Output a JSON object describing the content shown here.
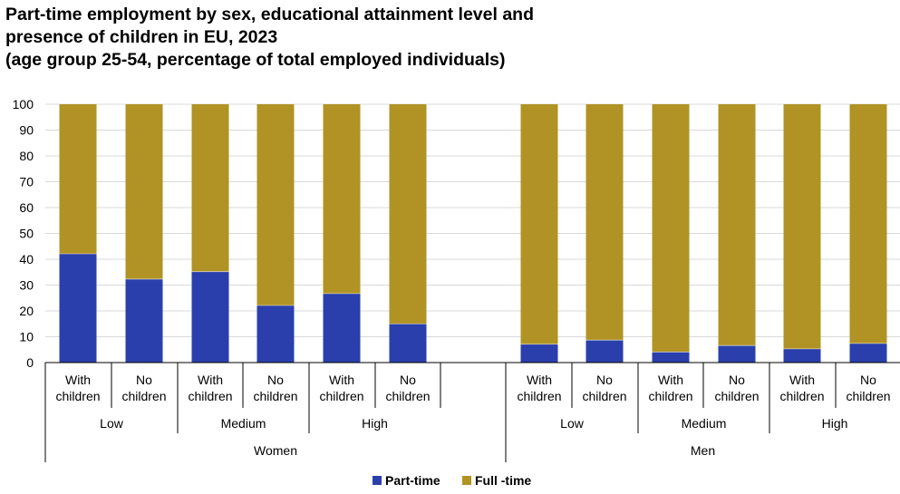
{
  "chart_data": {
    "type": "bar",
    "stacked": true,
    "title_lines": [
      "Part-time employment by sex, educational attainment level and",
      "presence of children in EU, 2023",
      "(age group 25-54, percentage of total employed individuals)"
    ],
    "ylim": [
      0,
      100
    ],
    "y_ticks": [
      "0",
      "10",
      "20",
      "30",
      "40",
      "50",
      "60",
      "70",
      "80",
      "90",
      "100"
    ],
    "grid": true,
    "legend_position": "bottom",
    "groups": [
      {
        "sex": "Women",
        "levels": [
          "Low",
          "Medium",
          "High"
        ]
      },
      {
        "sex": "Men",
        "levels": [
          "Low",
          "Medium",
          "High"
        ]
      }
    ],
    "categories": [
      {
        "sex": "Women",
        "level": "Low",
        "line1": "With",
        "line2": "children"
      },
      {
        "sex": "Women",
        "level": "Low",
        "line1": "No",
        "line2": "children"
      },
      {
        "sex": "Women",
        "level": "Medium",
        "line1": "With",
        "line2": "children"
      },
      {
        "sex": "Women",
        "level": "Medium",
        "line1": "No",
        "line2": "children"
      },
      {
        "sex": "Women",
        "level": "High",
        "line1": "With",
        "line2": "children"
      },
      {
        "sex": "Women",
        "level": "High",
        "line1": "No",
        "line2": "children"
      },
      {
        "sex": "Men",
        "level": "Low",
        "line1": "With",
        "line2": "children"
      },
      {
        "sex": "Men",
        "level": "Low",
        "line1": "No",
        "line2": "children"
      },
      {
        "sex": "Men",
        "level": "Medium",
        "line1": "With",
        "line2": "children"
      },
      {
        "sex": "Men",
        "level": "Medium",
        "line1": "No",
        "line2": "children"
      },
      {
        "sex": "Men",
        "level": "High",
        "line1": "With",
        "line2": "children"
      },
      {
        "sex": "Men",
        "level": "High",
        "line1": "No",
        "line2": "children"
      }
    ],
    "series": [
      {
        "name": "Part-time",
        "color": "#2a3fab",
        "values": [
          42.1,
          32.3,
          35.2,
          22.1,
          26.7,
          15.0,
          7.1,
          8.7,
          4.1,
          6.6,
          5.3,
          7.4
        ]
      },
      {
        "name": "Full -time",
        "color": "#b09324",
        "values": [
          57.9,
          67.7,
          64.8,
          77.9,
          73.3,
          85.0,
          92.9,
          91.3,
          95.9,
          93.4,
          94.7,
          92.6
        ]
      }
    ]
  }
}
